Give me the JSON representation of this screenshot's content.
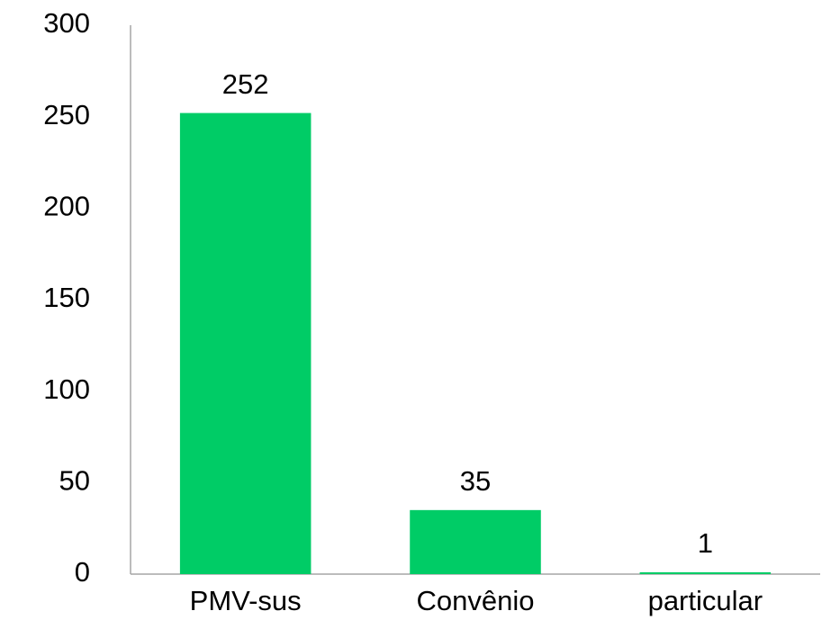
{
  "chart_data": {
    "type": "bar",
    "categories": [
      "PMV-sus",
      "Convênio",
      "particular"
    ],
    "values": [
      252,
      35,
      1
    ],
    "color": "#00cc66",
    "ylim": [
      0,
      300
    ],
    "yticks": [
      0,
      50,
      100,
      150,
      200,
      250,
      300
    ],
    "grid": false
  }
}
